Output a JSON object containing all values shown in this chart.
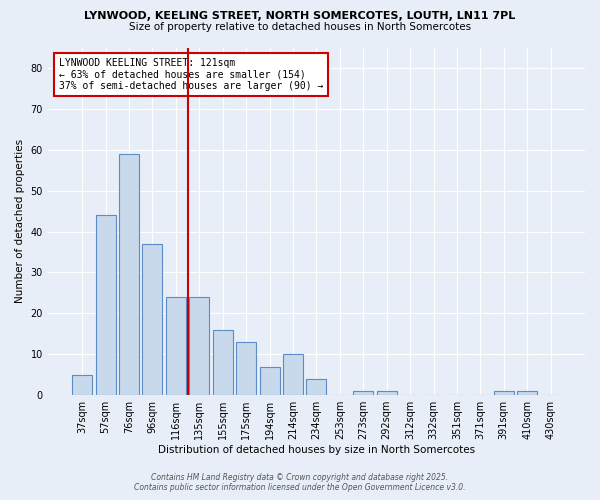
{
  "title1": "LYNWOOD, KEELING STREET, NORTH SOMERCOTES, LOUTH, LN11 7PL",
  "title2": "Size of property relative to detached houses in North Somercotes",
  "categories": [
    "37sqm",
    "57sqm",
    "76sqm",
    "96sqm",
    "116sqm",
    "135sqm",
    "155sqm",
    "175sqm",
    "194sqm",
    "214sqm",
    "234sqm",
    "253sqm",
    "273sqm",
    "292sqm",
    "312sqm",
    "332sqm",
    "351sqm",
    "371sqm",
    "391sqm",
    "410sqm",
    "430sqm"
  ],
  "values": [
    5,
    44,
    59,
    37,
    24,
    24,
    16,
    13,
    7,
    10,
    4,
    0,
    1,
    1,
    0,
    0,
    0,
    0,
    1,
    1,
    0
  ],
  "bar_color": "#c9d9ec",
  "bar_edge_color": "#5b8cc8",
  "background_color": "#e8eef7",
  "grid_color": "#ffffff",
  "ref_line_index": 4,
  "ref_line_color": "#cc0000",
  "ylabel": "Number of detached properties",
  "xlabel": "Distribution of detached houses by size in North Somercotes",
  "ylim": [
    0,
    85
  ],
  "yticks": [
    0,
    10,
    20,
    30,
    40,
    50,
    60,
    70,
    80
  ],
  "annotation_title": "LYNWOOD KEELING STREET: 121sqm",
  "annotation_line1": "← 63% of detached houses are smaller (154)",
  "annotation_line2": "37% of semi-detached houses are larger (90) →",
  "annotation_box_color": "#ffffff",
  "annotation_box_edge": "#cc0000",
  "footer1": "Contains HM Land Registry data © Crown copyright and database right 2025.",
  "footer2": "Contains public sector information licensed under the Open Government Licence v3.0."
}
